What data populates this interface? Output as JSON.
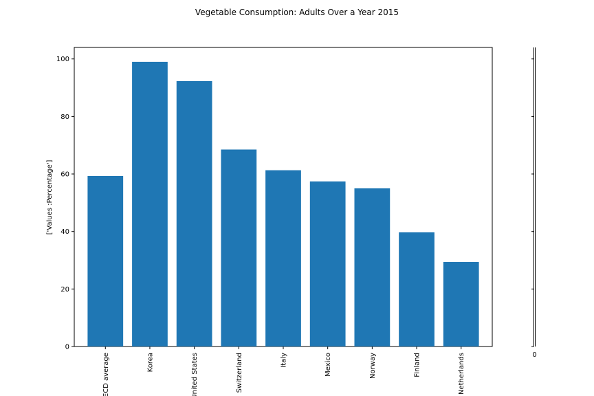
{
  "chart_data": {
    "type": "bar",
    "title": "Vegetable Consumption: Adults Over a Year 2015",
    "xlabel": "",
    "ylabel": "['Values :Percentage']",
    "categories": [
      "OECD average",
      "Korea",
      "United States",
      "Switzerland",
      "Italy",
      "Mexico",
      "Norway",
      "Finland",
      "Netherlands"
    ],
    "values": [
      59.3,
      99.0,
      92.3,
      68.5,
      61.3,
      57.4,
      55.0,
      39.7,
      29.4
    ],
    "ylim": [
      0,
      104
    ],
    "yticks": [
      0,
      20,
      40,
      60,
      80,
      100
    ],
    "grid": false,
    "bar_color": "#1f77b4",
    "secondary_axis": {
      "tick_label": "0"
    }
  }
}
